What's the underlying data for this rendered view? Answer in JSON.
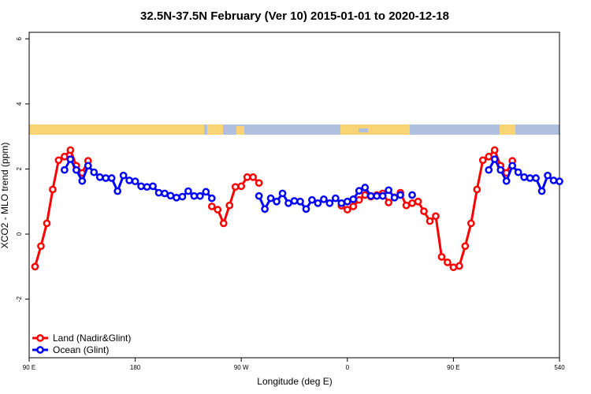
{
  "chart_data": {
    "type": "line",
    "title": "32.5N-37.5N February (Ver 10)   2015-01-01 to 2020-12-18",
    "x_label": "Longitude (deg E)",
    "y_label": "XCO2 - MLO trend (ppm)",
    "x": [
      95,
      100,
      105,
      110,
      115,
      120,
      125,
      130,
      135,
      140,
      145,
      150,
      155,
      160,
      165,
      170,
      175,
      180,
      185,
      190,
      195,
      200,
      205,
      210,
      215,
      220,
      225,
      230,
      235,
      240,
      245,
      250,
      255,
      260,
      265,
      270,
      275,
      280,
      285,
      290,
      295,
      300,
      305,
      310,
      315,
      320,
      325,
      330,
      335,
      340,
      345,
      350,
      355,
      360,
      365,
      370,
      375,
      380,
      385,
      390,
      395,
      400,
      405,
      410,
      415,
      420,
      425,
      430,
      435,
      440,
      445,
      450,
      455,
      460,
      465,
      470,
      475,
      480,
      485,
      490,
      495,
      500,
      505,
      510,
      515,
      520,
      525,
      530,
      535,
      540
    ],
    "series": [
      {
        "name": "Land (Nadir&Glint)",
        "color": "#ff0000",
        "values": [
          -1.0,
          -0.37,
          0.33,
          1.37,
          2.27,
          2.38,
          2.58,
          2.1,
          1.88,
          2.25,
          null,
          null,
          null,
          null,
          null,
          null,
          null,
          null,
          null,
          null,
          null,
          null,
          null,
          null,
          null,
          null,
          null,
          null,
          null,
          null,
          0.85,
          0.75,
          0.33,
          0.88,
          1.45,
          1.47,
          1.75,
          1.75,
          1.57,
          null,
          null,
          null,
          null,
          null,
          null,
          null,
          null,
          null,
          null,
          null,
          null,
          null,
          0.87,
          0.75,
          0.85,
          1.05,
          1.2,
          1.15,
          1.2,
          1.25,
          0.97,
          1.13,
          1.27,
          0.88,
          0.95,
          1.0,
          0.7,
          0.4,
          0.55,
          -0.7,
          -0.87,
          -1.02,
          -0.98,
          -0.37,
          0.33,
          1.37,
          2.27,
          2.38,
          2.58,
          2.1,
          1.88,
          2.25,
          null,
          null,
          null,
          null,
          null,
          null,
          null,
          null
        ]
      },
      {
        "name": "Ocean (Glint)",
        "color": "#0000ff",
        "values": [
          null,
          null,
          null,
          null,
          null,
          1.97,
          2.3,
          1.97,
          1.63,
          2.1,
          1.9,
          1.75,
          1.72,
          1.72,
          1.32,
          1.8,
          1.65,
          1.62,
          1.47,
          1.45,
          1.47,
          1.27,
          1.25,
          1.18,
          1.12,
          1.15,
          1.32,
          1.17,
          1.17,
          1.3,
          1.1,
          null,
          null,
          null,
          null,
          null,
          null,
          null,
          1.17,
          0.77,
          1.1,
          1.0,
          1.25,
          0.95,
          1.02,
          1.0,
          0.77,
          1.05,
          0.95,
          1.07,
          0.95,
          1.1,
          0.95,
          1.0,
          1.07,
          1.33,
          1.43,
          1.17,
          1.17,
          1.17,
          1.35,
          1.12,
          1.2,
          null,
          1.2,
          null,
          null,
          null,
          null,
          null,
          null,
          null,
          null,
          null,
          null,
          null,
          null,
          1.97,
          2.3,
          1.97,
          1.63,
          2.1,
          1.9,
          1.75,
          1.72,
          1.72,
          1.32,
          1.8,
          1.65,
          1.62
        ]
      }
    ],
    "xlim": [
      90,
      540
    ],
    "xticks": [
      {
        "value": 90,
        "label": "90 E"
      },
      180,
      {
        "value": 270,
        "label": "90 W"
      },
      {
        "value": 360,
        "label": "0"
      },
      {
        "value": 450,
        "label": "90 E"
      },
      540
    ],
    "ylim": [
      -3.8,
      6.2
    ],
    "yticks": [
      -2,
      0,
      2,
      4,
      6
    ],
    "legend": "bottom-left"
  }
}
